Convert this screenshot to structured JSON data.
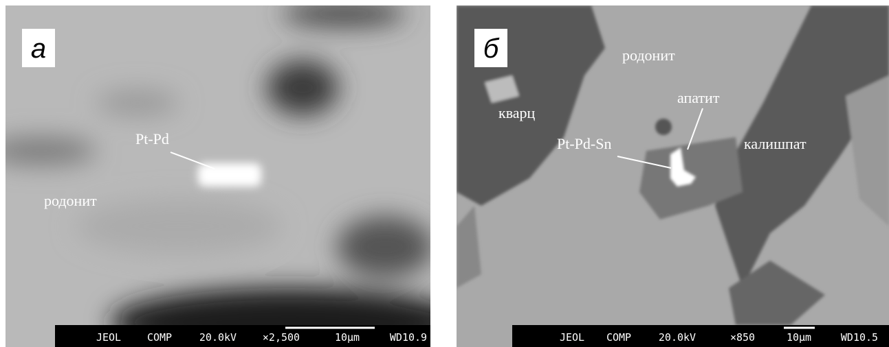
{
  "panels": [
    {
      "letter": "а",
      "labels": [
        "Pt-Pd",
        "родонит"
      ],
      "info_bar": [
        "JEOL",
        "COMP",
        "20.0kV",
        "×2,500",
        "10μm",
        "WD10.9"
      ]
    },
    {
      "letter": "б",
      "labels": [
        "родонит",
        "кварц",
        "апатит",
        "Pt-Pd-Sn",
        "калишпат"
      ],
      "info_bar": [
        "JEOL",
        "COMP",
        "20.0kV",
        "×850",
        "10μm",
        "WD10.5"
      ]
    }
  ]
}
